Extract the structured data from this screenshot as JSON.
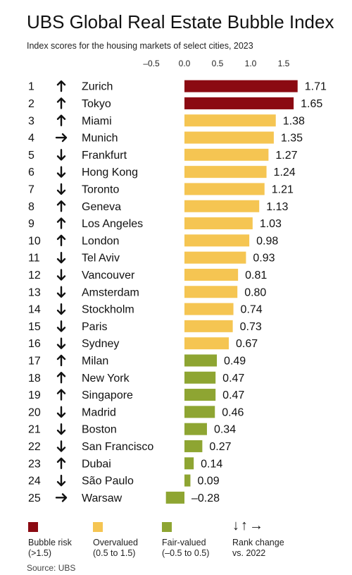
{
  "title": "UBS Global Real Estate Bubble Index",
  "subtitle": "Index scores for the housing markets of select cities, 2023",
  "source": "Source: UBS",
  "colors": {
    "bubble": "#8b0a12",
    "overvalued": "#f5c552",
    "fair": "#8ea532"
  },
  "legend": {
    "bubble": {
      "label1": "Bubble risk",
      "label2": "(>1.5)"
    },
    "overvalued": {
      "label1": "Overvalued",
      "label2": "(0.5 to 1.5)"
    },
    "fair": {
      "label1": "Fair-valued",
      "label2": "(–0.5 to 0.5)"
    },
    "rank": {
      "arrows": "↓↑→",
      "label1": "Rank change",
      "label2": "vs. 2022"
    }
  },
  "chart_data": {
    "type": "bar",
    "orientation": "horizontal",
    "xlim": [
      -0.5,
      1.5
    ],
    "xticks": [
      "–0.5",
      "0.0",
      "0.5",
      "1.0",
      "1.5"
    ],
    "xtick_values": [
      -0.5,
      0,
      0.5,
      1.0,
      1.5
    ],
    "categories": [
      "Zurich",
      "Tokyo",
      "Miami",
      "Munich",
      "Frankfurt",
      "Hong Kong",
      "Toronto",
      "Geneva",
      "Los Angeles",
      "London",
      "Tel Aviv",
      "Vancouver",
      "Amsterdam",
      "Stockholm",
      "Paris",
      "Sydney",
      "Milan",
      "New York",
      "Singapore",
      "Madrid",
      "Boston",
      "San Francisco",
      "Dubai",
      "São Paulo",
      "Warsaw"
    ],
    "ranks": [
      "1",
      "2",
      "3",
      "4",
      "5",
      "6",
      "7",
      "8",
      "9",
      "10",
      "11",
      "12",
      "13",
      "14",
      "15",
      "16",
      "17",
      "18",
      "19",
      "20",
      "21",
      "22",
      "23",
      "24",
      "25"
    ],
    "rank_change": [
      "up",
      "up",
      "up",
      "right",
      "down",
      "down",
      "down",
      "up",
      "up",
      "up",
      "down",
      "down",
      "down",
      "down",
      "down",
      "down",
      "up",
      "up",
      "up",
      "down",
      "down",
      "down",
      "up",
      "down",
      "right"
    ],
    "values": [
      1.71,
      1.65,
      1.38,
      1.35,
      1.27,
      1.24,
      1.21,
      1.13,
      1.03,
      0.98,
      0.93,
      0.81,
      0.8,
      0.74,
      0.73,
      0.67,
      0.49,
      0.47,
      0.47,
      0.46,
      0.34,
      0.27,
      0.14,
      0.09,
      -0.28
    ],
    "value_labels": [
      "1.71",
      "1.65",
      "1.38",
      "1.35",
      "1.27",
      "1.24",
      "1.21",
      "1.13",
      "1.03",
      "0.98",
      "0.93",
      "0.81",
      "0.80",
      "0.74",
      "0.73",
      "0.67",
      "0.49",
      "0.47",
      "0.47",
      "0.46",
      "0.34",
      "0.27",
      "0.14",
      "0.09",
      "–0.28"
    ],
    "category_class": [
      "bubble",
      "bubble",
      "overvalued",
      "overvalued",
      "overvalued",
      "overvalued",
      "overvalued",
      "overvalued",
      "overvalued",
      "overvalued",
      "overvalued",
      "overvalued",
      "overvalued",
      "overvalued",
      "overvalued",
      "overvalued",
      "fair",
      "fair",
      "fair",
      "fair",
      "fair",
      "fair",
      "fair",
      "fair",
      "fair"
    ]
  }
}
